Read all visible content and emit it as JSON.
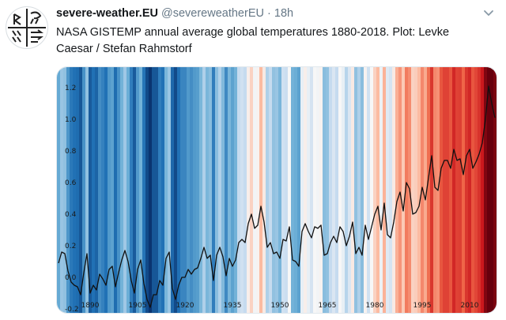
{
  "tweet": {
    "author_name": "severe-weather.EU",
    "handle": "@severeweatherEU",
    "separator": "·",
    "time": "18h",
    "text": "NASA GISTEMP annual average global temperatures 1880-2018. Plot: Levke Caesar / Stefan Rahmstorf"
  },
  "icons": {
    "avatar": "severe-weather-logo",
    "menu": "chevron-down-icon"
  },
  "chart_data": {
    "type": "line",
    "title": "",
    "xlabel": "",
    "ylabel": "",
    "xlim": [
      1880,
      2018
    ],
    "ylim": [
      -0.2,
      1.3
    ],
    "x_ticks": [
      1890,
      1905,
      1920,
      1935,
      1950,
      1965,
      1980,
      1995,
      2010
    ],
    "y_ticks": [
      -0.2,
      0.0,
      0.2,
      0.4,
      0.6,
      0.8,
      1.0,
      1.2
    ],
    "x_tick_labels": [
      "1890",
      "1905",
      "1920",
      "1935",
      "1950",
      "1965",
      "1980",
      "1995",
      "2010"
    ],
    "y_tick_labels": [
      "-0.2",
      "0.0",
      "0.2",
      "0.4",
      "0.6",
      "0.8",
      "1.0",
      "1.2"
    ],
    "background": "warming stripes (blue = cooler, red = warmer)",
    "line_color": "#111111",
    "x": [
      1880,
      1881,
      1882,
      1883,
      1884,
      1885,
      1886,
      1887,
      1888,
      1889,
      1890,
      1891,
      1892,
      1893,
      1894,
      1895,
      1896,
      1897,
      1898,
      1899,
      1900,
      1901,
      1902,
      1903,
      1904,
      1905,
      1906,
      1907,
      1908,
      1909,
      1910,
      1911,
      1912,
      1913,
      1914,
      1915,
      1916,
      1917,
      1918,
      1919,
      1920,
      1921,
      1922,
      1923,
      1924,
      1925,
      1926,
      1927,
      1928,
      1929,
      1930,
      1931,
      1932,
      1933,
      1934,
      1935,
      1936,
      1937,
      1938,
      1939,
      1940,
      1941,
      1942,
      1943,
      1944,
      1945,
      1946,
      1947,
      1948,
      1949,
      1950,
      1951,
      1952,
      1953,
      1954,
      1955,
      1956,
      1957,
      1958,
      1959,
      1960,
      1961,
      1962,
      1963,
      1964,
      1965,
      1966,
      1967,
      1968,
      1969,
      1970,
      1971,
      1972,
      1973,
      1974,
      1975,
      1976,
      1977,
      1978,
      1979,
      1980,
      1981,
      1982,
      1983,
      1984,
      1985,
      1986,
      1987,
      1988,
      1989,
      1990,
      1991,
      1992,
      1993,
      1994,
      1995,
      1996,
      1997,
      1998,
      1999,
      2000,
      2001,
      2002,
      2003,
      2004,
      2005,
      2006,
      2007,
      2008,
      2009,
      2010,
      2011,
      2012,
      2013,
      2014,
      2015,
      2016,
      2017,
      2018
    ],
    "y": [
      0.09,
      0.16,
      0.15,
      0.04,
      -0.03,
      -0.05,
      -0.06,
      -0.11,
      0.03,
      0.15,
      -0.1,
      -0.05,
      -0.08,
      0.02,
      -0.01,
      -0.05,
      0.05,
      0.07,
      -0.06,
      0.03,
      0.11,
      0.17,
      0.1,
      -0.02,
      -0.1,
      0.05,
      0.11,
      -0.04,
      -0.14,
      -0.19,
      -0.11,
      -0.11,
      -0.02,
      -0.05,
      0.12,
      0.16,
      -0.07,
      -0.14,
      -0.05,
      0.0,
      0.0,
      0.05,
      0.02,
      0.05,
      0.06,
      0.12,
      0.19,
      0.12,
      0.14,
      -0.02,
      0.14,
      0.19,
      0.13,
      0.01,
      0.12,
      0.07,
      0.11,
      0.22,
      0.24,
      0.22,
      0.34,
      0.4,
      0.31,
      0.33,
      0.45,
      0.35,
      0.19,
      0.22,
      0.15,
      0.16,
      0.12,
      0.24,
      0.23,
      0.32,
      0.11,
      0.1,
      0.07,
      0.29,
      0.34,
      0.29,
      0.25,
      0.32,
      0.31,
      0.33,
      0.14,
      0.15,
      0.22,
      0.26,
      0.22,
      0.32,
      0.29,
      0.2,
      0.26,
      0.35,
      0.15,
      0.19,
      0.14,
      0.33,
      0.24,
      0.32,
      0.4,
      0.45,
      0.3,
      0.47,
      0.27,
      0.25,
      0.35,
      0.48,
      0.54,
      0.42,
      0.6,
      0.56,
      0.4,
      0.41,
      0.45,
      0.57,
      0.49,
      0.63,
      0.77,
      0.57,
      0.55,
      0.69,
      0.74,
      0.74,
      0.69,
      0.81,
      0.74,
      0.75,
      0.65,
      0.77,
      0.81,
      0.69,
      0.73,
      0.78,
      0.85,
      1.0,
      1.21,
      1.1,
      1.01
    ]
  }
}
